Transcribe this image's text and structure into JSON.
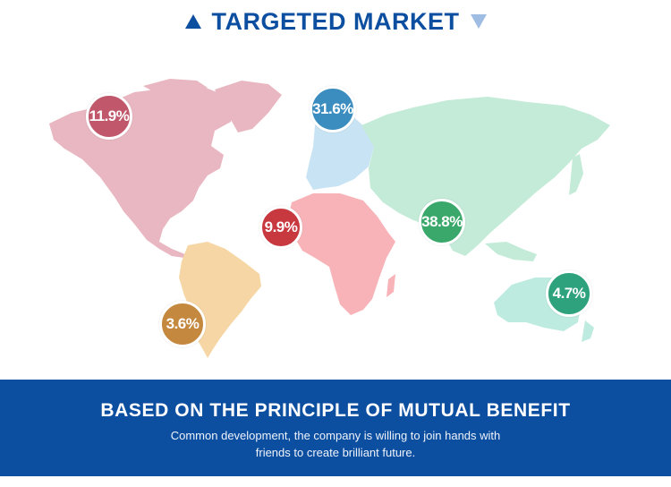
{
  "header": {
    "title": "TARGETED MARKET",
    "left_icon": "triangle-up-icon",
    "right_icon": "triangle-down-icon",
    "accent_color": "#0c4ea0"
  },
  "regions": [
    {
      "name": "north-america",
      "value": "11.9%",
      "color": "#c0576b",
      "land_color": "#e9b7c1"
    },
    {
      "name": "europe",
      "value": "31.6%",
      "color": "#3b8dbf",
      "land_color": "#c8e4f4"
    },
    {
      "name": "africa",
      "value": "9.9%",
      "color": "#c8383f",
      "land_color": "#f7b3b8"
    },
    {
      "name": "asia",
      "value": "38.8%",
      "color": "#3aa86a",
      "land_color": "#c3ebd8"
    },
    {
      "name": "south-america",
      "value": "3.6%",
      "color": "#c4883f",
      "land_color": "#f6d6a4"
    },
    {
      "name": "oceania",
      "value": "4.7%",
      "color": "#2ea27c",
      "land_color": "#bdebe0"
    }
  ],
  "footer": {
    "heading": "BASED ON THE PRINCIPLE OF MUTUAL BENEFIT",
    "line1": "Common development, the company is willing to join hands with",
    "line2": "friends to create brilliant future.",
    "background": "#0c4ea0"
  }
}
